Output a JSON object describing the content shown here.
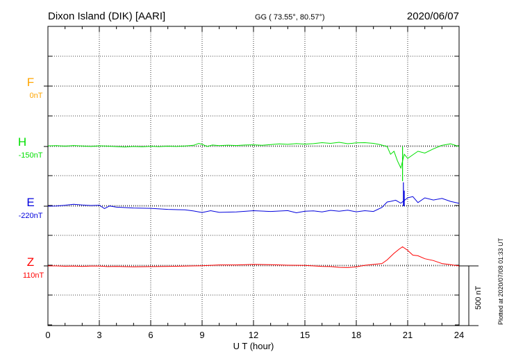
{
  "header": {
    "station": "Dixon Island (DIK)  [AARI]",
    "coords": "GG ( 73.55°,  80.57°)",
    "date": "2020/06/07"
  },
  "plotted_note": "Plotted at 2020/07/08 01:33 UT",
  "scale_bar_label": "500 nT",
  "chart_data": {
    "type": "line",
    "xlabel": "U T (hour)",
    "xlim": [
      0,
      24
    ],
    "xticks": [
      "0",
      "3",
      "6",
      "9",
      "12",
      "15",
      "18",
      "21",
      "24"
    ],
    "scale_nT": 500,
    "grid": true,
    "series": [
      {
        "name": "F",
        "baseline_label": "0nT",
        "color": "#ffa500",
        "offset": 0,
        "x": [],
        "y": []
      },
      {
        "name": "H",
        "baseline_label": "-150nT",
        "color": "#00e000",
        "offset": -150,
        "x": [
          0,
          0.5,
          1,
          1.5,
          2,
          2.5,
          3,
          3.5,
          4,
          4.5,
          5,
          5.5,
          6,
          6.5,
          7,
          7.5,
          8,
          8.5,
          8.8,
          9,
          9.3,
          9.6,
          10,
          10.5,
          11,
          11.5,
          12,
          12.5,
          13,
          13.5,
          14,
          14.5,
          15,
          15.5,
          16,
          16.5,
          17,
          17.5,
          18,
          18.5,
          19,
          19.4,
          19.8,
          20.0,
          20.2,
          20.4,
          20.6,
          20.8,
          21.0,
          21.3,
          21.6,
          22.0,
          22.5,
          23.0,
          23.5,
          24
        ],
        "y": [
          -145,
          -143,
          -147,
          -142,
          -146,
          -150,
          -144,
          -147,
          -151,
          -154,
          -150,
          -153,
          -148,
          -151,
          -147,
          -150,
          -146,
          -140,
          -125,
          -132,
          -150,
          -138,
          -143,
          -139,
          -142,
          -138,
          -136,
          -140,
          -134,
          -128,
          -132,
          -126,
          -130,
          -126,
          -118,
          -124,
          -115,
          -127,
          -120,
          -118,
          -124,
          -135,
          -150,
          -215,
          -190,
          -270,
          -330,
          -215,
          -250,
          -220,
          -190,
          -205,
          -170,
          -140,
          -128,
          -150
        ],
        "spikes": [
          {
            "x": 20.7,
            "y": -440
          }
        ]
      },
      {
        "name": "E",
        "baseline_label": "-220nT",
        "color": "#0000dd",
        "offset": -220,
        "x": [
          0,
          0.5,
          1,
          1.5,
          2,
          2.5,
          3,
          3.3,
          3.6,
          4,
          5,
          6,
          7,
          8,
          8.5,
          9,
          9.5,
          10,
          11,
          12,
          13,
          14,
          14.5,
          15,
          15.5,
          16,
          16.5,
          17,
          17.5,
          18,
          18.5,
          19,
          19.5,
          19.8,
          20.0,
          20.3,
          20.6,
          21.0,
          21.3,
          21.6,
          22.0,
          22.5,
          23.0,
          23.5,
          24
        ],
        "y": [
          -220,
          -218,
          -212,
          -204,
          -210,
          -214,
          -212,
          -240,
          -218,
          -228,
          -235,
          -238,
          -247,
          -251,
          -260,
          -273,
          -258,
          -272,
          -268,
          -258,
          -264,
          -257,
          -275,
          -262,
          -259,
          -268,
          -255,
          -262,
          -254,
          -267,
          -258,
          -264,
          -230,
          -185,
          -180,
          -170,
          -195,
          -150,
          -140,
          -190,
          -150,
          -168,
          -155,
          -180,
          -196
        ],
        "spikes": [
          {
            "x": 20.75,
            "y": -20
          },
          {
            "x": 20.8,
            "y": -90
          }
        ]
      },
      {
        "name": "Z",
        "baseline_label": "110nT",
        "color": "#ff0000",
        "offset": 110,
        "x": [
          0,
          0.5,
          1,
          1.5,
          2,
          2.5,
          3,
          3.5,
          4,
          5,
          6,
          7,
          8,
          9,
          10,
          11,
          12,
          13,
          14,
          15,
          15.5,
          16,
          16.5,
          17,
          17.5,
          18,
          18.5,
          19,
          19.5,
          19.8,
          20.2,
          20.5,
          20.7,
          21.0,
          21.3,
          21.6,
          22.0,
          22.5,
          23,
          23.5,
          24
        ],
        "y": [
          110,
          110,
          107,
          108,
          106,
          108,
          108,
          104,
          106,
          102,
          104,
          106,
          108,
          112,
          118,
          118,
          122,
          120,
          116,
          114,
          110,
          106,
          104,
          98,
          96,
          102,
          115,
          122,
          130,
          160,
          215,
          250,
          270,
          240,
          200,
          195,
          170,
          155,
          130,
          120,
          110
        ]
      }
    ]
  }
}
